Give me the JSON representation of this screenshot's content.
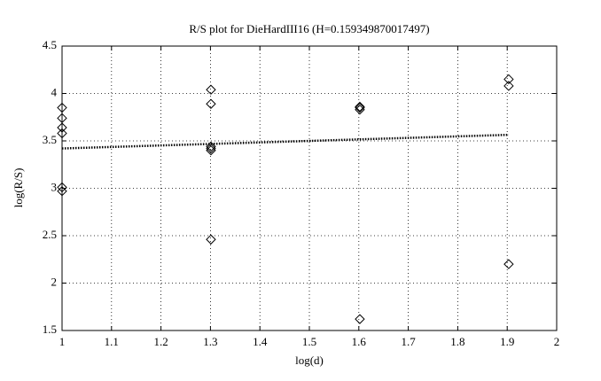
{
  "chart_data": {
    "type": "scatter",
    "title": "R/S plot for DieHardIII16 (H=0.159349870017497)",
    "x_label": "log(d)",
    "y_label": "log(R/S)",
    "xlim": [
      1,
      2
    ],
    "ylim": [
      1.5,
      4.5
    ],
    "xticks": [
      1,
      1.1,
      1.2,
      1.3,
      1.4,
      1.5,
      1.6,
      1.7,
      1.8,
      1.9,
      2
    ],
    "yticks": [
      1.5,
      2,
      2.5,
      3,
      3.5,
      4,
      4.5
    ],
    "grid": true,
    "series": [
      {
        "x": [
          1,
          1,
          1,
          1,
          1,
          1,
          1.301,
          1.301,
          1.301,
          1.301,
          1.301,
          1.301,
          1.602,
          1.602,
          1.602,
          1.602,
          1.903,
          1.903,
          1.903
        ],
        "y": [
          3.85,
          3.74,
          3.64,
          3.58,
          3.01,
          2.97,
          4.04,
          3.89,
          3.44,
          3.42,
          3.4,
          2.46,
          3.86,
          3.85,
          3.83,
          1.62,
          4.15,
          4.08,
          2.2
        ],
        "color": "#000000",
        "marker": "diamond"
      },
      {
        "x": [
          1,
          1.903
        ],
        "y": [
          3.42,
          3.564
        ],
        "color": "#000000",
        "style": "dotted"
      }
    ]
  }
}
